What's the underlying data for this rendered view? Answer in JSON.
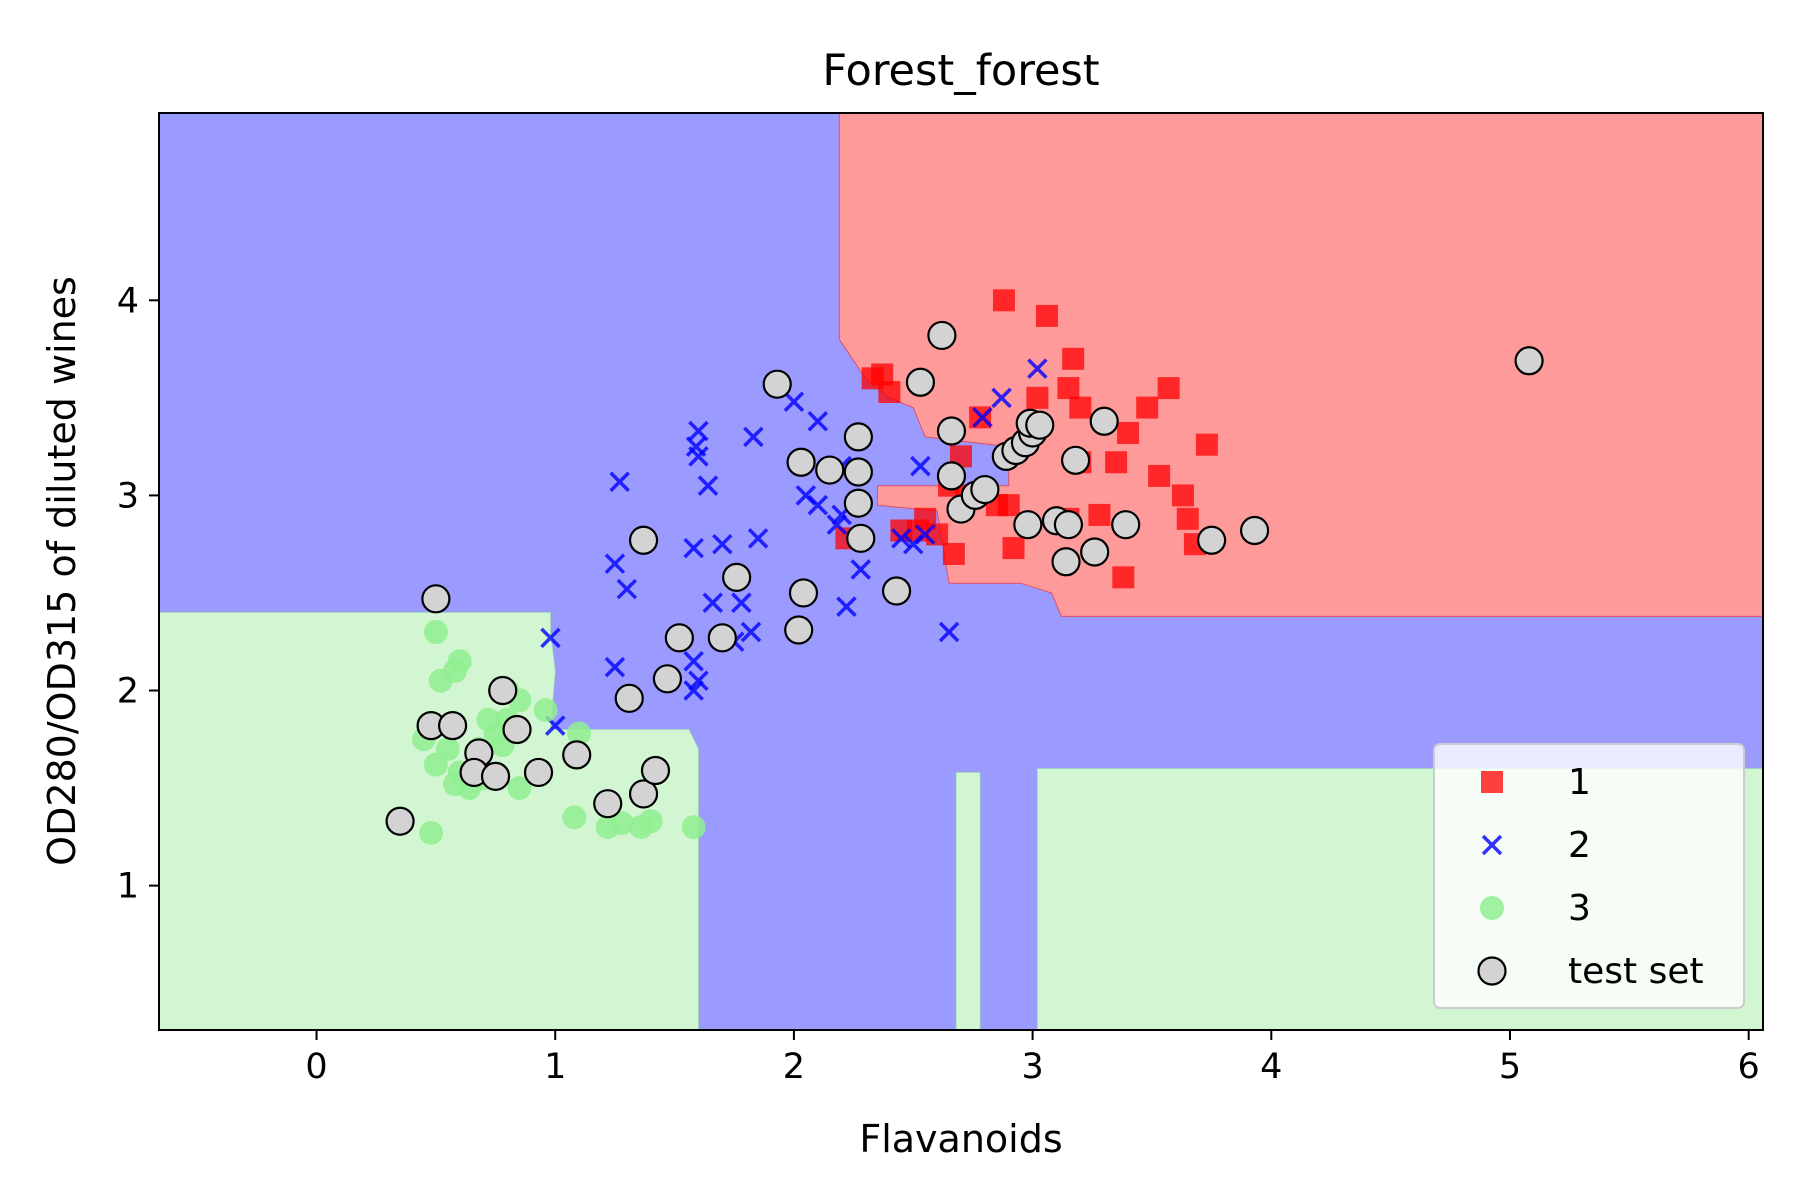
{
  "chart_data": {
    "type": "scatter",
    "title": "Forest_forest",
    "xlabel": "Flavanoids",
    "ylabel": "OD280/OD315 of diluted wines",
    "xlim": [
      -0.66,
      6.06
    ],
    "ylim": [
      0.26,
      4.96
    ],
    "xticks": [
      0,
      1,
      2,
      3,
      4,
      5,
      6
    ],
    "yticks": [
      1,
      2,
      3,
      4
    ],
    "grid": false,
    "legend_position": "lower-right",
    "colors": {
      "class1": "#ff0000",
      "class2": "#0000ff",
      "class3": "#90ee90",
      "region1": "#ff9a9a",
      "region2": "#9a9aff",
      "region3": "#d2f6d2",
      "test": "#d3d3d3"
    },
    "regions": [
      {
        "class": "2",
        "polygon": [
          [
            -0.66,
            2.4
          ],
          [
            -0.66,
            4.96
          ],
          [
            6.06,
            4.96
          ],
          [
            6.06,
            0.26
          ],
          [
            -0.66,
            0.26
          ]
        ]
      },
      {
        "class": "1",
        "polygon": [
          [
            2.19,
            4.96
          ],
          [
            6.06,
            4.96
          ],
          [
            6.06,
            2.38
          ],
          [
            3.12,
            2.38
          ],
          [
            3.08,
            2.5
          ],
          [
            2.95,
            2.55
          ],
          [
            2.65,
            2.55
          ],
          [
            2.6,
            2.92
          ],
          [
            2.35,
            2.95
          ],
          [
            2.35,
            3.05
          ],
          [
            2.9,
            3.05
          ],
          [
            2.9,
            3.25
          ],
          [
            2.55,
            3.3
          ],
          [
            2.5,
            3.45
          ],
          [
            2.4,
            3.5
          ],
          [
            2.3,
            3.6
          ],
          [
            2.19,
            3.8
          ]
        ]
      },
      {
        "class": "3",
        "polygon": [
          [
            -0.66,
            0.26
          ],
          [
            -0.66,
            2.4
          ],
          [
            0.98,
            2.4
          ],
          [
            0.98,
            2.3
          ],
          [
            1.0,
            2.1
          ],
          [
            0.98,
            1.8
          ],
          [
            1.3,
            1.8
          ],
          [
            1.56,
            1.8
          ],
          [
            1.6,
            1.7
          ],
          [
            1.6,
            0.26
          ]
        ]
      },
      {
        "class": "3",
        "polygon": [
          [
            2.68,
            0.26
          ],
          [
            2.68,
            1.58
          ],
          [
            2.78,
            1.58
          ],
          [
            2.78,
            0.26
          ]
        ]
      },
      {
        "class": "3",
        "polygon": [
          [
            3.02,
            0.26
          ],
          [
            3.02,
            1.6
          ],
          [
            6.06,
            1.6
          ],
          [
            6.06,
            0.26
          ]
        ]
      }
    ],
    "series": [
      {
        "name": "1",
        "marker": "square",
        "points": [
          [
            2.88,
            4.0
          ],
          [
            3.06,
            3.92
          ],
          [
            2.37,
            3.62
          ],
          [
            2.33,
            3.6
          ],
          [
            2.4,
            3.53
          ],
          [
            3.17,
            3.7
          ],
          [
            3.15,
            3.55
          ],
          [
            3.02,
            3.5
          ],
          [
            3.57,
            3.55
          ],
          [
            3.48,
            3.45
          ],
          [
            3.2,
            3.45
          ],
          [
            2.78,
            3.4
          ],
          [
            3.4,
            3.32
          ],
          [
            3.73,
            3.26
          ],
          [
            2.7,
            3.2
          ],
          [
            3.2,
            3.17
          ],
          [
            3.35,
            3.17
          ],
          [
            3.53,
            3.1
          ],
          [
            3.63,
            3.0
          ],
          [
            2.65,
            3.05
          ],
          [
            2.72,
            3.0
          ],
          [
            2.9,
            2.95
          ],
          [
            3.28,
            2.9
          ],
          [
            3.15,
            2.88
          ],
          [
            3.65,
            2.88
          ],
          [
            3.68,
            2.75
          ],
          [
            2.55,
            2.88
          ],
          [
            2.6,
            2.8
          ],
          [
            2.22,
            2.78
          ],
          [
            2.45,
            2.82
          ],
          [
            2.67,
            2.7
          ],
          [
            2.92,
            2.73
          ],
          [
            3.38,
            2.58
          ],
          [
            2.52,
            2.82
          ],
          [
            2.85,
            2.95
          ]
        ]
      },
      {
        "name": "2",
        "marker": "x",
        "points": [
          [
            1.27,
            3.07
          ],
          [
            1.6,
            3.33
          ],
          [
            1.59,
            3.25
          ],
          [
            1.6,
            3.2
          ],
          [
            1.64,
            3.05
          ],
          [
            1.83,
            3.3
          ],
          [
            2.0,
            3.48
          ],
          [
            2.1,
            3.38
          ],
          [
            2.2,
            3.15
          ],
          [
            2.05,
            3.0
          ],
          [
            2.1,
            2.95
          ],
          [
            2.2,
            2.9
          ],
          [
            2.18,
            2.85
          ],
          [
            1.58,
            2.73
          ],
          [
            1.7,
            2.75
          ],
          [
            1.85,
            2.78
          ],
          [
            1.25,
            2.65
          ],
          [
            1.3,
            2.52
          ],
          [
            1.66,
            2.45
          ],
          [
            1.78,
            2.45
          ],
          [
            2.22,
            2.43
          ],
          [
            2.28,
            2.62
          ],
          [
            2.5,
            2.75
          ],
          [
            2.45,
            2.78
          ],
          [
            2.55,
            2.8
          ],
          [
            2.53,
            3.15
          ],
          [
            2.87,
            3.5
          ],
          [
            3.02,
            3.65
          ],
          [
            2.79,
            3.4
          ],
          [
            2.65,
            2.3
          ],
          [
            1.82,
            2.3
          ],
          [
            1.75,
            2.25
          ],
          [
            1.25,
            2.12
          ],
          [
            1.58,
            2.15
          ],
          [
            1.58,
            2.0
          ],
          [
            1.6,
            2.05
          ],
          [
            1.0,
            1.82
          ],
          [
            0.98,
            2.27
          ]
        ]
      },
      {
        "name": "3",
        "marker": "circle",
        "points": [
          [
            0.5,
            2.3
          ],
          [
            0.52,
            2.05
          ],
          [
            0.6,
            2.15
          ],
          [
            0.58,
            2.1
          ],
          [
            0.72,
            1.85
          ],
          [
            0.8,
            1.85
          ],
          [
            0.45,
            1.75
          ],
          [
            0.55,
            1.7
          ],
          [
            0.68,
            1.7
          ],
          [
            0.75,
            1.78
          ],
          [
            0.78,
            1.72
          ],
          [
            0.5,
            1.62
          ],
          [
            0.6,
            1.58
          ],
          [
            0.58,
            1.52
          ],
          [
            0.64,
            1.5
          ],
          [
            0.7,
            1.55
          ],
          [
            0.85,
            1.5
          ],
          [
            0.96,
            1.9
          ],
          [
            1.1,
            1.78
          ],
          [
            1.08,
            1.35
          ],
          [
            1.22,
            1.3
          ],
          [
            1.28,
            1.32
          ],
          [
            1.36,
            1.3
          ],
          [
            1.4,
            1.33
          ],
          [
            1.58,
            1.3
          ],
          [
            0.48,
            1.27
          ],
          [
            0.8,
            2.0
          ],
          [
            0.85,
            1.95
          ]
        ]
      },
      {
        "name": "test set",
        "marker": "circle-edge",
        "points": [
          [
            0.5,
            2.47
          ],
          [
            0.35,
            1.33
          ],
          [
            0.48,
            1.82
          ],
          [
            0.57,
            1.82
          ],
          [
            0.78,
            2.0
          ],
          [
            0.84,
            1.8
          ],
          [
            0.68,
            1.68
          ],
          [
            0.66,
            1.58
          ],
          [
            0.75,
            1.56
          ],
          [
            0.93,
            1.58
          ],
          [
            1.09,
            1.67
          ],
          [
            1.22,
            1.42
          ],
          [
            1.37,
            1.47
          ],
          [
            1.42,
            1.59
          ],
          [
            1.31,
            1.96
          ],
          [
            1.47,
            2.06
          ],
          [
            1.52,
            2.27
          ],
          [
            1.7,
            2.27
          ],
          [
            1.37,
            2.77
          ],
          [
            1.76,
            2.58
          ],
          [
            1.93,
            3.57
          ],
          [
            2.03,
            3.17
          ],
          [
            2.15,
            3.13
          ],
          [
            2.27,
            3.3
          ],
          [
            2.27,
            3.12
          ],
          [
            2.27,
            2.96
          ],
          [
            2.28,
            2.78
          ],
          [
            2.04,
            2.5
          ],
          [
            2.02,
            2.31
          ],
          [
            2.43,
            2.51
          ],
          [
            2.53,
            3.58
          ],
          [
            2.62,
            3.82
          ],
          [
            2.66,
            3.33
          ],
          [
            2.66,
            3.1
          ],
          [
            2.7,
            2.93
          ],
          [
            2.76,
            3.0
          ],
          [
            2.8,
            3.03
          ],
          [
            2.89,
            3.2
          ],
          [
            2.93,
            3.23
          ],
          [
            2.97,
            3.27
          ],
          [
            3.0,
            3.32
          ],
          [
            2.99,
            3.37
          ],
          [
            3.03,
            3.36
          ],
          [
            2.98,
            2.85
          ],
          [
            3.1,
            2.87
          ],
          [
            3.15,
            2.85
          ],
          [
            3.14,
            2.66
          ],
          [
            3.18,
            3.18
          ],
          [
            3.26,
            2.71
          ],
          [
            3.3,
            3.38
          ],
          [
            3.39,
            2.85
          ],
          [
            3.75,
            2.77
          ],
          [
            3.93,
            2.82
          ],
          [
            5.08,
            3.69
          ]
        ]
      }
    ],
    "legend": [
      {
        "label": "1",
        "marker": "square"
      },
      {
        "label": "2",
        "marker": "x"
      },
      {
        "label": "3",
        "marker": "circle"
      },
      {
        "label": "test set",
        "marker": "circle-edge"
      }
    ]
  }
}
